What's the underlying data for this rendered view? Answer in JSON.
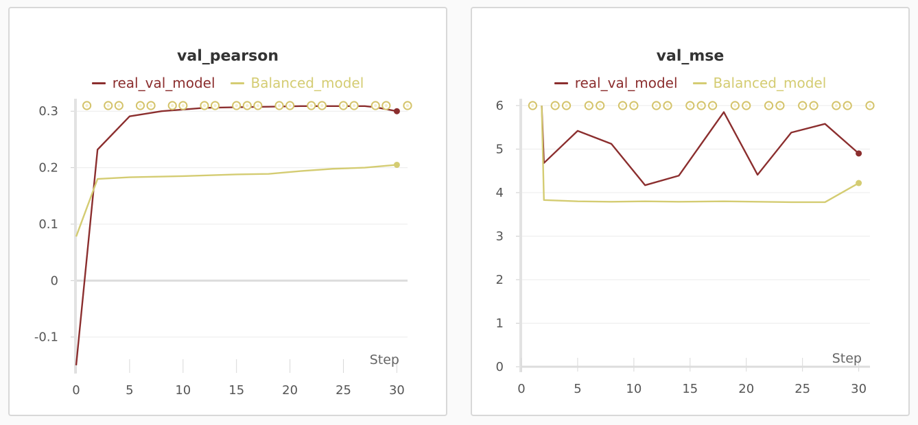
{
  "colors": {
    "real": "#8b2e2e",
    "balanced": "#d4cc72",
    "marker_stroke": "#d4c36a",
    "grid": "#ebebeb",
    "axis": "#e2e2e2"
  },
  "chart_data": [
    {
      "type": "line",
      "title": "val_pearson",
      "xlabel": "Step",
      "ylabel": "",
      "xlim": [
        0,
        31
      ],
      "ylim": [
        -0.155,
        0.31
      ],
      "xticks": [
        0,
        5,
        10,
        15,
        20,
        25,
        30
      ],
      "yticks": [
        -0.1,
        0,
        0.1,
        0.2,
        0.3
      ],
      "ytick_labels": [
        "-0.1",
        "0",
        "0.1",
        "0.2",
        "0.3"
      ],
      "legend_placement": "top-center",
      "grid": true,
      "series": [
        {
          "name": "real_val_model",
          "color": "#8b2e2e",
          "x": [
            0,
            2,
            5,
            8,
            12,
            15,
            18,
            21,
            24,
            27,
            28,
            30
          ],
          "y": [
            -0.15,
            0.232,
            0.291,
            0.3,
            0.306,
            0.307,
            0.308,
            0.309,
            0.309,
            0.309,
            0.307,
            0.3
          ]
        },
        {
          "name": "Balanced_model",
          "color": "#d4cc72",
          "x": [
            0,
            2,
            5,
            10,
            15,
            18,
            21,
            24,
            27,
            30
          ],
          "y": [
            0.078,
            0.18,
            0.183,
            0.185,
            0.188,
            0.189,
            0.194,
            0.198,
            0.2,
            0.205
          ]
        }
      ],
      "markers_y": 0.31,
      "markers_x": [
        1,
        3,
        4,
        6,
        7,
        9,
        10,
        12,
        13,
        15,
        16,
        17,
        19,
        20,
        22,
        23,
        25,
        26,
        28,
        29,
        31
      ]
    },
    {
      "type": "line",
      "title": "val_mse",
      "xlabel": "Step",
      "ylabel": "",
      "xlim": [
        0,
        31
      ],
      "ylim": [
        0,
        6
      ],
      "xticks": [
        0,
        5,
        10,
        15,
        20,
        25,
        30
      ],
      "yticks": [
        0,
        1,
        2,
        3,
        4,
        5,
        6
      ],
      "ytick_labels": [
        "0",
        "1",
        "2",
        "3",
        "4",
        "5",
        "6"
      ],
      "legend_placement": "top-center",
      "grid": true,
      "series": [
        {
          "name": "real_val_model",
          "color": "#8b2e2e",
          "x": [
            1.8,
            2,
            5,
            8,
            11,
            14,
            18,
            21,
            24,
            27,
            30
          ],
          "y": [
            6.0,
            4.68,
            5.42,
            5.12,
            4.17,
            4.39,
            5.85,
            4.41,
            5.38,
            5.58,
            4.9
          ]
        },
        {
          "name": "Balanced_model",
          "color": "#d4cc72",
          "x": [
            1.8,
            2,
            5,
            8,
            11,
            14,
            18,
            21,
            24,
            27,
            30
          ],
          "y": [
            6.0,
            3.83,
            3.8,
            3.79,
            3.8,
            3.79,
            3.8,
            3.79,
            3.78,
            3.78,
            4.22
          ]
        }
      ],
      "markers_y": 6,
      "markers_x": [
        1,
        3,
        4,
        6,
        7,
        9,
        10,
        12,
        13,
        15,
        16,
        17,
        19,
        20,
        22,
        23,
        25,
        26,
        28,
        29,
        31
      ]
    }
  ]
}
